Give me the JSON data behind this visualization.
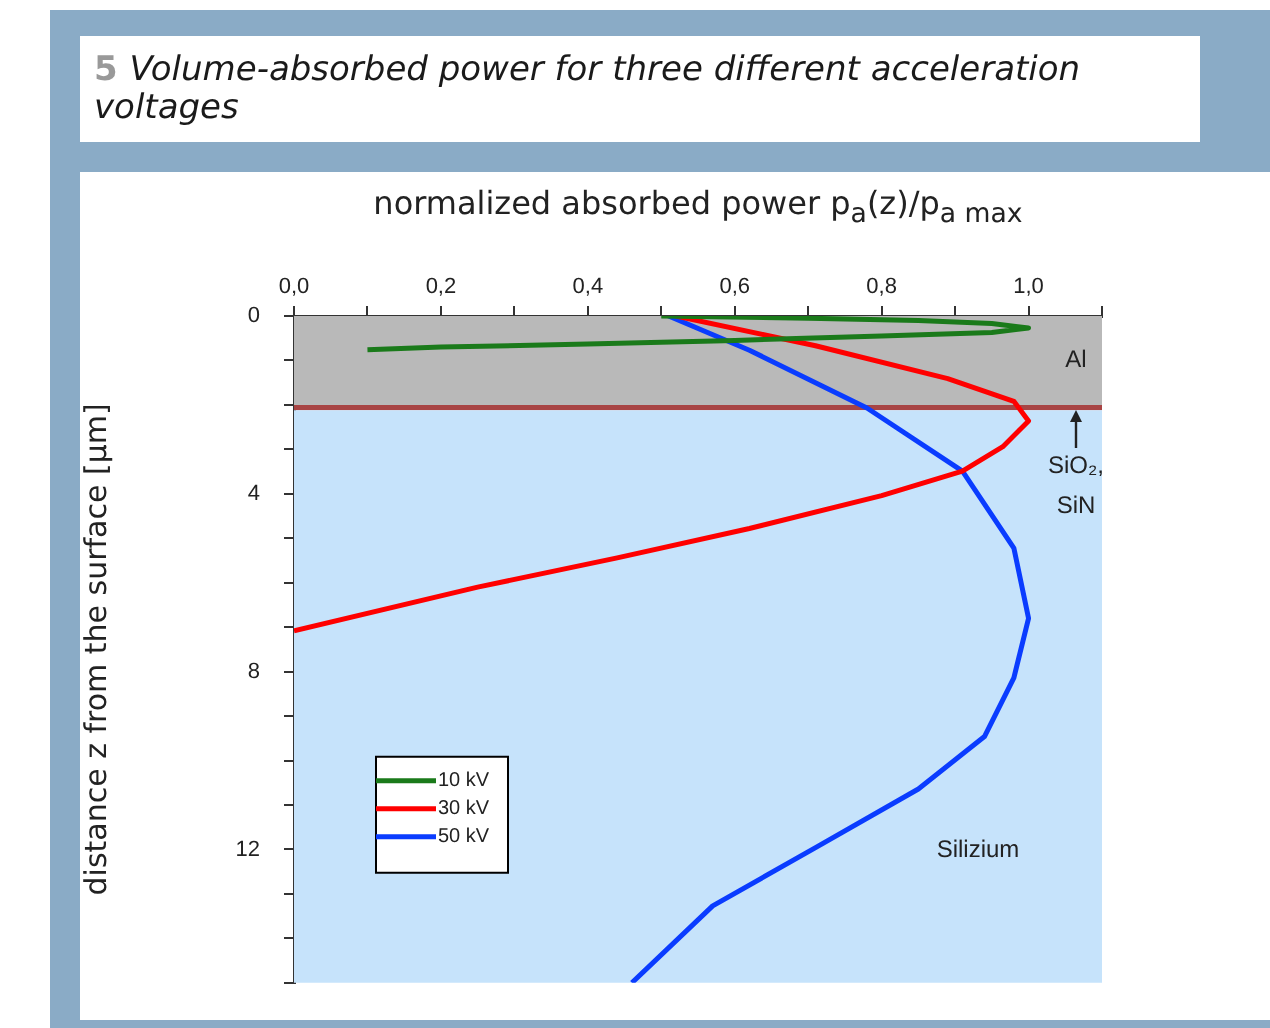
{
  "chart_data": {
    "type": "line",
    "title": "5 Volume-absorbed power for three different acceleration voltages",
    "xlabel": "normalized absorbed power p$_{a}$(z)/p$_{a max}$",
    "ylabel": "distance z from the surface [µm]",
    "xlim": [
      0,
      1.1
    ],
    "xticks": [
      {
        "value": 0,
        "label": "0,0"
      },
      {
        "value": 0.1,
        "label": null
      },
      {
        "value": 0.2,
        "label": "0,2"
      },
      {
        "value": 0.3,
        "label": null
      },
      {
        "value": 0.4,
        "label": "0,4"
      },
      {
        "value": 0.5,
        "label": null
      },
      {
        "value": 0.6,
        "label": "0,6"
      },
      {
        "value": 0.7,
        "label": null
      },
      {
        "value": 0.8,
        "label": "0,8"
      },
      {
        "value": 0.9,
        "label": null
      },
      {
        "value": 1.0,
        "label": "1,0"
      },
      {
        "value": 1.1,
        "label": null
      }
    ],
    "ylim": [
      15,
      0
    ],
    "yticks": [
      0,
      {
        "value": 1,
        "label": null
      },
      {
        "value": 2,
        "label": null
      },
      {
        "value": 3,
        "label": null
      },
      4,
      {
        "value": 5,
        "label": null
      },
      {
        "value": 6,
        "label": null
      },
      {
        "value": 7,
        "label": null
      },
      8,
      {
        "value": 9,
        "label": null
      },
      {
        "value": 10,
        "label": null
      },
      {
        "value": 11,
        "label": null
      },
      12,
      {
        "value": 13,
        "label": null
      },
      {
        "value": 14,
        "label": null
      },
      {
        "value": 15,
        "label": null
      }
    ],
    "grid": false,
    "legend": "bottom left",
    "line_style": "solid",
    "bands": [
      {
        "axis": "y",
        "from": 0,
        "to": 2,
        "color": "#b9b9b9",
        "label": "Al"
      },
      {
        "axis": "y",
        "from": 2,
        "to": 2.12,
        "color": "#a84444",
        "label": "SiO₂, SiN"
      },
      {
        "axis": "y",
        "from": 2.12,
        "to": 15,
        "color": "#c6e3fb",
        "label": "Silizium"
      }
    ],
    "series": [
      {
        "name": "10 kV",
        "color": "#1a7a1a",
        "x": [
          0.5,
          0.7,
          0.85,
          0.95,
          1.0,
          0.95,
          0.8,
          0.6,
          0.4,
          0.2,
          0.1
        ],
        "values": [
          0,
          0.05,
          0.1,
          0.17,
          0.27,
          0.37,
          0.45,
          0.55,
          0.63,
          0.7,
          0.76
        ]
      },
      {
        "name": "30 kV",
        "color": "#ff0000",
        "x": [
          0.52,
          0.71,
          0.89,
          0.98,
          1.0,
          0.965,
          0.91,
          0.8,
          0.62,
          0.44,
          0.25,
          0
        ],
        "values": [
          0,
          0.67,
          1.41,
          1.92,
          2.36,
          2.94,
          3.49,
          4.04,
          4.78,
          5.44,
          6.1,
          7.08
        ]
      },
      {
        "name": "50 kV",
        "color": "#0a3cff",
        "x": [
          0.51,
          0.62,
          0.78,
          0.91,
          0.98,
          1.0,
          0.98,
          0.94,
          0.85,
          0.71,
          0.57,
          0.46
        ],
        "values": [
          0,
          0.77,
          2.07,
          3.49,
          5.22,
          6.8,
          8.14,
          9.46,
          10.64,
          11.96,
          13.27,
          15
        ]
      }
    ]
  }
}
